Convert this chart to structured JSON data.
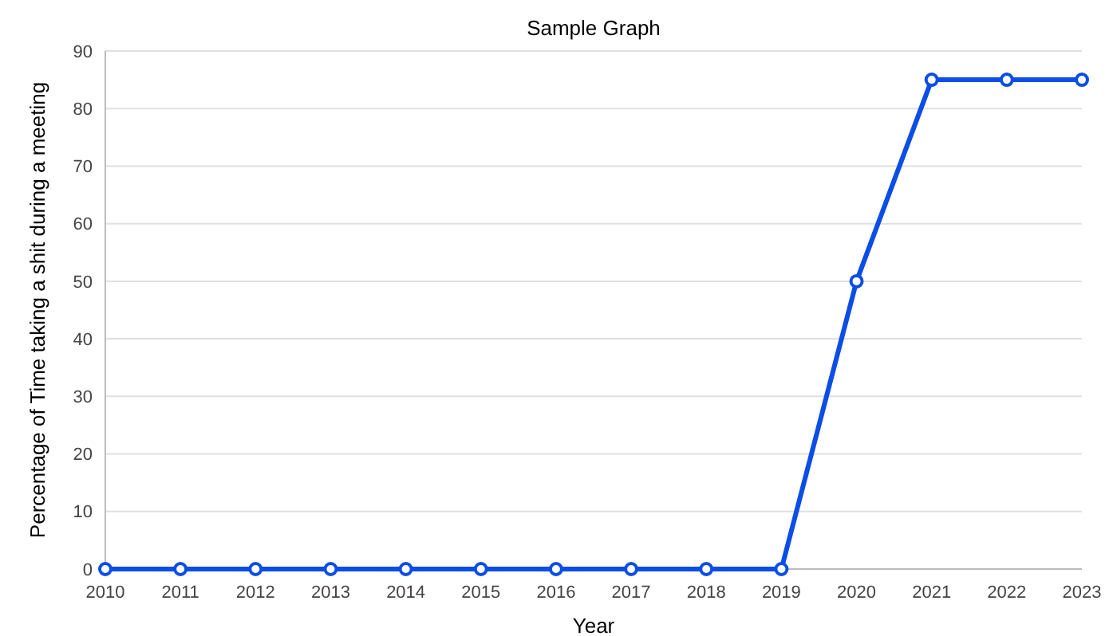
{
  "chart_data": {
    "type": "line",
    "title": "Sample Graph",
    "xlabel": "Year",
    "ylabel": "Percentage of Time taking a shit during a meeting",
    "categories": [
      "2010",
      "2011",
      "2012",
      "2013",
      "2014",
      "2015",
      "2016",
      "2017",
      "2018",
      "2019",
      "2020",
      "2021",
      "2022",
      "2023"
    ],
    "series": [
      {
        "color": "#0b4ee6",
        "values": [
          0,
          0,
          0,
          0,
          0,
          0,
          0,
          0,
          0,
          0,
          50,
          85,
          85,
          85
        ]
      }
    ],
    "ylim": [
      0,
      90
    ],
    "yticks": [
      0,
      10,
      20,
      30,
      40,
      50,
      60,
      70,
      80,
      90
    ],
    "grid": "y",
    "marker": "circle",
    "line_style": "solid"
  }
}
